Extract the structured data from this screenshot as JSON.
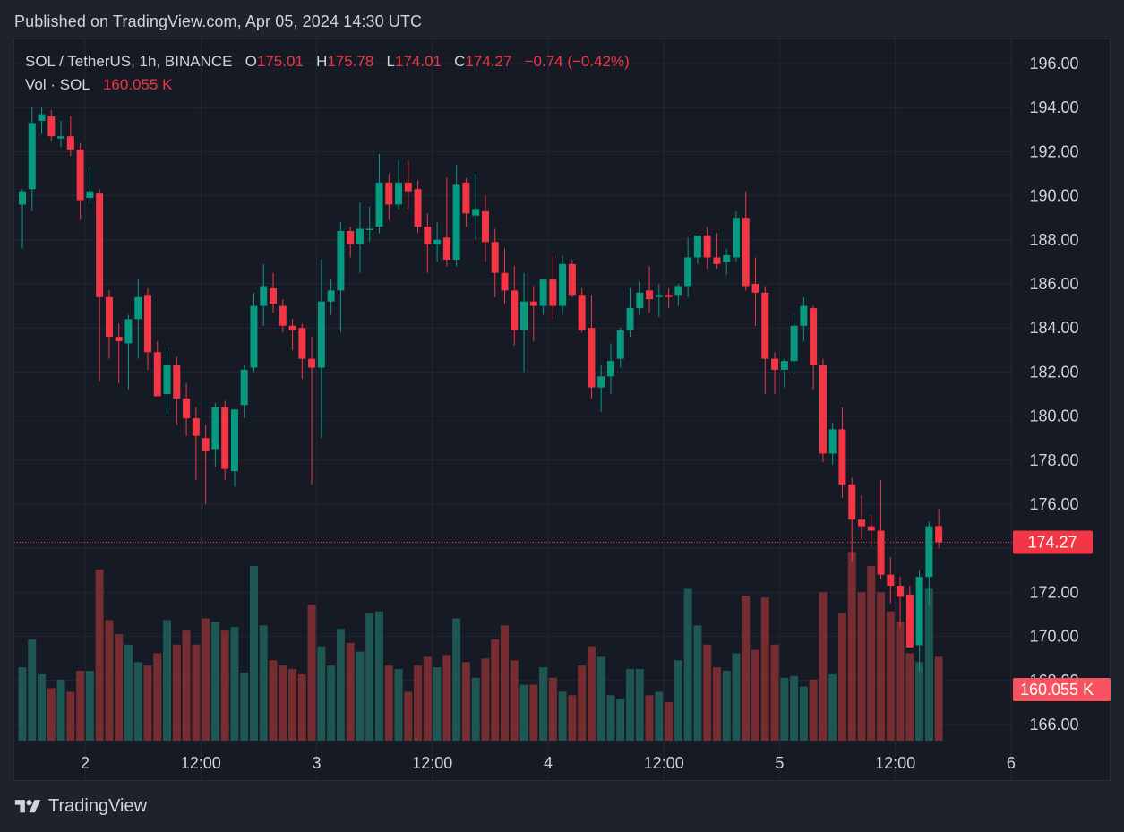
{
  "header": {
    "published": "Published on TradingView.com, Apr 05, 2024 14:30 UTC"
  },
  "legend": {
    "symbol": "SOL / TetherUS, 1h, BINANCE",
    "o_label": "O",
    "o_value": "175.01",
    "h_label": "H",
    "h_value": "175.78",
    "l_label": "L",
    "l_value": "174.01",
    "c_label": "C",
    "c_value": "174.27",
    "change": "−0.74 (−0.42%)",
    "vol_label": "Vol · SOL",
    "vol_value": "160.055 K"
  },
  "price_badge": "174.27",
  "volume_badge": "160.055 K",
  "footer": {
    "brand": "TradingView"
  },
  "colors": {
    "up": "#089981",
    "down": "#f23645",
    "background": "#161a25",
    "grid": "#232733"
  },
  "chart_data": {
    "type": "candlestick",
    "interval": "1h",
    "symbol": "SOL / TetherUS",
    "exchange": "BINANCE",
    "ylim": [
      165.4,
      197.2
    ],
    "y_ticks": [
      "166.00",
      "168.00",
      "170.00",
      "172.00",
      "174.00",
      "176.00",
      "178.00",
      "180.00",
      "182.00",
      "184.00",
      "186.00",
      "188.00",
      "190.00",
      "192.00",
      "194.00",
      "196.00"
    ],
    "x_ticks": [
      {
        "label": "2",
        "index": 6.5
      },
      {
        "label": "12:00",
        "index": 18.5
      },
      {
        "label": "3",
        "index": 30.5
      },
      {
        "label": "12:00",
        "index": 42.5
      },
      {
        "label": "4",
        "index": 54.5
      },
      {
        "label": "12:00",
        "index": 66.5
      },
      {
        "label": "5",
        "index": 78.5
      },
      {
        "label": "12:00",
        "index": 90.5
      },
      {
        "label": "6",
        "index": 102.5
      }
    ],
    "last_price": 174.27,
    "candles": [
      {
        "o": 189.6,
        "h": 190.3,
        "l": 187.6,
        "c": 190.2,
        "v": 0.42
      },
      {
        "o": 190.3,
        "h": 194.0,
        "l": 189.3,
        "c": 193.3,
        "v": 0.58
      },
      {
        "o": 193.4,
        "h": 194.0,
        "l": 192.8,
        "c": 193.7,
        "v": 0.38
      },
      {
        "o": 193.6,
        "h": 193.9,
        "l": 192.5,
        "c": 192.7,
        "v": 0.3
      },
      {
        "o": 192.6,
        "h": 193.4,
        "l": 192.2,
        "c": 192.7,
        "v": 0.35
      },
      {
        "o": 192.7,
        "h": 193.6,
        "l": 191.8,
        "c": 192.1,
        "v": 0.28
      },
      {
        "o": 192.1,
        "h": 192.4,
        "l": 188.9,
        "c": 189.8,
        "v": 0.4
      },
      {
        "o": 189.9,
        "h": 191.3,
        "l": 189.6,
        "c": 190.2,
        "v": 0.4
      },
      {
        "o": 190.1,
        "h": 190.3,
        "l": 181.6,
        "c": 185.4,
        "v": 0.98
      },
      {
        "o": 185.4,
        "h": 185.7,
        "l": 182.6,
        "c": 183.6,
        "v": 0.69
      },
      {
        "o": 183.6,
        "h": 184.2,
        "l": 181.5,
        "c": 183.4,
        "v": 0.61
      },
      {
        "o": 183.3,
        "h": 184.6,
        "l": 181.2,
        "c": 184.4,
        "v": 0.55
      },
      {
        "o": 184.4,
        "h": 186.2,
        "l": 182.6,
        "c": 185.4,
        "v": 0.45
      },
      {
        "o": 185.5,
        "h": 185.8,
        "l": 182.1,
        "c": 182.9,
        "v": 0.43
      },
      {
        "o": 182.9,
        "h": 183.4,
        "l": 180.9,
        "c": 180.9,
        "v": 0.5
      },
      {
        "o": 181.0,
        "h": 183.1,
        "l": 180.1,
        "c": 182.3,
        "v": 0.69
      },
      {
        "o": 182.3,
        "h": 182.7,
        "l": 179.6,
        "c": 180.8,
        "v": 0.55
      },
      {
        "o": 180.8,
        "h": 181.5,
        "l": 179.1,
        "c": 179.9,
        "v": 0.63
      },
      {
        "o": 179.9,
        "h": 180.4,
        "l": 177.1,
        "c": 179.1,
        "v": 0.55
      },
      {
        "o": 179.0,
        "h": 179.6,
        "l": 176.0,
        "c": 178.4,
        "v": 0.7
      },
      {
        "o": 178.5,
        "h": 180.6,
        "l": 177.7,
        "c": 180.4,
        "v": 0.68
      },
      {
        "o": 180.4,
        "h": 180.7,
        "l": 177.1,
        "c": 177.6,
        "v": 0.63
      },
      {
        "o": 177.5,
        "h": 180.3,
        "l": 176.8,
        "c": 180.3,
        "v": 0.65
      },
      {
        "o": 180.5,
        "h": 182.3,
        "l": 179.9,
        "c": 182.1,
        "v": 0.39
      },
      {
        "o": 182.2,
        "h": 185.6,
        "l": 182.0,
        "c": 185.0,
        "v": 1.0
      },
      {
        "o": 185.0,
        "h": 186.9,
        "l": 184.1,
        "c": 185.9,
        "v": 0.66
      },
      {
        "o": 185.8,
        "h": 186.5,
        "l": 184.7,
        "c": 185.1,
        "v": 0.46
      },
      {
        "o": 185.0,
        "h": 185.3,
        "l": 183.8,
        "c": 184.1,
        "v": 0.43
      },
      {
        "o": 184.1,
        "h": 184.4,
        "l": 183.0,
        "c": 183.9,
        "v": 0.41
      },
      {
        "o": 184.0,
        "h": 184.2,
        "l": 181.7,
        "c": 182.6,
        "v": 0.38
      },
      {
        "o": 182.6,
        "h": 183.6,
        "l": 176.9,
        "c": 182.2,
        "v": 0.78
      },
      {
        "o": 182.2,
        "h": 187.1,
        "l": 179.0,
        "c": 185.2,
        "v": 0.54
      },
      {
        "o": 185.2,
        "h": 186.2,
        "l": 184.6,
        "c": 185.7,
        "v": 0.43
      },
      {
        "o": 185.7,
        "h": 188.8,
        "l": 183.8,
        "c": 188.4,
        "v": 0.64
      },
      {
        "o": 188.4,
        "h": 188.6,
        "l": 187.2,
        "c": 187.8,
        "v": 0.56
      },
      {
        "o": 187.8,
        "h": 189.7,
        "l": 186.5,
        "c": 188.5,
        "v": 0.51
      },
      {
        "o": 188.5,
        "h": 189.5,
        "l": 187.9,
        "c": 188.5,
        "v": 0.73
      },
      {
        "o": 188.6,
        "h": 191.9,
        "l": 188.3,
        "c": 190.6,
        "v": 0.74
      },
      {
        "o": 190.6,
        "h": 191.0,
        "l": 188.9,
        "c": 189.6,
        "v": 0.43
      },
      {
        "o": 189.6,
        "h": 191.6,
        "l": 189.4,
        "c": 190.6,
        "v": 0.41
      },
      {
        "o": 190.6,
        "h": 191.6,
        "l": 189.4,
        "c": 190.2,
        "v": 0.28
      },
      {
        "o": 190.3,
        "h": 190.7,
        "l": 188.3,
        "c": 188.6,
        "v": 0.43
      },
      {
        "o": 188.6,
        "h": 189.2,
        "l": 186.5,
        "c": 187.8,
        "v": 0.48
      },
      {
        "o": 187.8,
        "h": 188.8,
        "l": 187.0,
        "c": 188.0,
        "v": 0.42
      },
      {
        "o": 188.1,
        "h": 190.8,
        "l": 186.8,
        "c": 187.1,
        "v": 0.49
      },
      {
        "o": 187.1,
        "h": 191.4,
        "l": 186.8,
        "c": 190.5,
        "v": 0.7
      },
      {
        "o": 190.6,
        "h": 190.8,
        "l": 188.6,
        "c": 189.2,
        "v": 0.45
      },
      {
        "o": 189.1,
        "h": 191.0,
        "l": 188.0,
        "c": 189.4,
        "v": 0.36
      },
      {
        "o": 189.3,
        "h": 190.0,
        "l": 187.0,
        "c": 187.9,
        "v": 0.47
      },
      {
        "o": 187.9,
        "h": 188.5,
        "l": 185.4,
        "c": 186.5,
        "v": 0.58
      },
      {
        "o": 186.5,
        "h": 187.6,
        "l": 185.1,
        "c": 185.7,
        "v": 0.66
      },
      {
        "o": 185.7,
        "h": 186.8,
        "l": 183.2,
        "c": 183.9,
        "v": 0.46
      },
      {
        "o": 183.9,
        "h": 186.5,
        "l": 182.0,
        "c": 185.2,
        "v": 0.32
      },
      {
        "o": 185.2,
        "h": 185.9,
        "l": 183.4,
        "c": 185.0,
        "v": 0.32
      },
      {
        "o": 185.0,
        "h": 186.1,
        "l": 184.6,
        "c": 186.2,
        "v": 0.42
      },
      {
        "o": 186.2,
        "h": 187.3,
        "l": 184.4,
        "c": 185.0,
        "v": 0.36
      },
      {
        "o": 185.0,
        "h": 187.3,
        "l": 184.6,
        "c": 186.9,
        "v": 0.28
      },
      {
        "o": 186.9,
        "h": 187.1,
        "l": 185.4,
        "c": 185.5,
        "v": 0.26
      },
      {
        "o": 185.5,
        "h": 185.8,
        "l": 183.8,
        "c": 183.9,
        "v": 0.43
      },
      {
        "o": 184.0,
        "h": 185.5,
        "l": 180.8,
        "c": 181.3,
        "v": 0.54
      },
      {
        "o": 181.3,
        "h": 182.3,
        "l": 180.2,
        "c": 181.8,
        "v": 0.48
      },
      {
        "o": 181.8,
        "h": 183.3,
        "l": 181.0,
        "c": 182.5,
        "v": 0.26
      },
      {
        "o": 182.6,
        "h": 184.0,
        "l": 182.2,
        "c": 183.9,
        "v": 0.24
      },
      {
        "o": 183.9,
        "h": 185.8,
        "l": 183.6,
        "c": 184.9,
        "v": 0.41
      },
      {
        "o": 184.9,
        "h": 186.1,
        "l": 184.6,
        "c": 185.6,
        "v": 0.41
      },
      {
        "o": 185.7,
        "h": 186.8,
        "l": 184.7,
        "c": 185.3,
        "v": 0.26
      },
      {
        "o": 185.4,
        "h": 186.0,
        "l": 184.5,
        "c": 185.5,
        "v": 0.28
      },
      {
        "o": 185.5,
        "h": 185.8,
        "l": 184.9,
        "c": 185.4,
        "v": 0.22
      },
      {
        "o": 185.5,
        "h": 186.0,
        "l": 185.0,
        "c": 185.9,
        "v": 0.46
      },
      {
        "o": 185.9,
        "h": 188.1,
        "l": 185.4,
        "c": 187.2,
        "v": 0.87
      },
      {
        "o": 187.2,
        "h": 188.0,
        "l": 186.9,
        "c": 188.2,
        "v": 0.66
      },
      {
        "o": 188.2,
        "h": 188.6,
        "l": 186.7,
        "c": 187.2,
        "v": 0.55
      },
      {
        "o": 187.2,
        "h": 188.3,
        "l": 186.7,
        "c": 186.9,
        "v": 0.42
      },
      {
        "o": 187.0,
        "h": 187.6,
        "l": 186.4,
        "c": 187.3,
        "v": 0.4
      },
      {
        "o": 187.2,
        "h": 189.3,
        "l": 187.0,
        "c": 189.0,
        "v": 0.5
      },
      {
        "o": 189.0,
        "h": 190.2,
        "l": 185.7,
        "c": 185.9,
        "v": 0.83
      },
      {
        "o": 186.0,
        "h": 187.2,
        "l": 184.1,
        "c": 185.6,
        "v": 0.52
      },
      {
        "o": 185.6,
        "h": 185.9,
        "l": 181.0,
        "c": 182.6,
        "v": 0.82
      },
      {
        "o": 182.6,
        "h": 182.9,
        "l": 181.0,
        "c": 182.1,
        "v": 0.55
      },
      {
        "o": 182.1,
        "h": 182.6,
        "l": 181.3,
        "c": 182.5,
        "v": 0.36
      },
      {
        "o": 182.5,
        "h": 184.6,
        "l": 181.9,
        "c": 184.1,
        "v": 0.37
      },
      {
        "o": 184.1,
        "h": 185.4,
        "l": 183.4,
        "c": 185.0,
        "v": 0.31
      },
      {
        "o": 184.9,
        "h": 185.0,
        "l": 181.2,
        "c": 182.3,
        "v": 0.35
      },
      {
        "o": 182.3,
        "h": 182.6,
        "l": 177.9,
        "c": 178.3,
        "v": 0.85
      },
      {
        "o": 178.3,
        "h": 179.7,
        "l": 177.8,
        "c": 179.4,
        "v": 0.38
      },
      {
        "o": 179.4,
        "h": 180.4,
        "l": 176.3,
        "c": 176.9,
        "v": 0.73
      },
      {
        "o": 176.9,
        "h": 177.2,
        "l": 173.4,
        "c": 175.3,
        "v": 1.08
      },
      {
        "o": 175.3,
        "h": 176.4,
        "l": 174.4,
        "c": 175.0,
        "v": 0.85
      },
      {
        "o": 175.0,
        "h": 175.5,
        "l": 174.1,
        "c": 174.8,
        "v": 1.0
      },
      {
        "o": 174.8,
        "h": 177.1,
        "l": 172.6,
        "c": 172.8,
        "v": 0.85
      },
      {
        "o": 172.8,
        "h": 173.6,
        "l": 171.5,
        "c": 172.3,
        "v": 0.74
      },
      {
        "o": 172.3,
        "h": 172.7,
        "l": 170.4,
        "c": 171.8,
        "v": 0.68
      },
      {
        "o": 171.9,
        "h": 172.3,
        "l": 169.8,
        "c": 169.5,
        "v": 0.5
      },
      {
        "o": 169.6,
        "h": 173.0,
        "l": 168.4,
        "c": 172.7,
        "v": 0.45
      },
      {
        "o": 172.7,
        "h": 175.2,
        "l": 171.4,
        "c": 175.0,
        "v": 0.87
      },
      {
        "o": 175.01,
        "h": 175.78,
        "l": 174.01,
        "c": 174.27,
        "v": 0.48
      }
    ],
    "volume": {
      "label": "Vol · SOL",
      "last": "160.055 K"
    }
  }
}
